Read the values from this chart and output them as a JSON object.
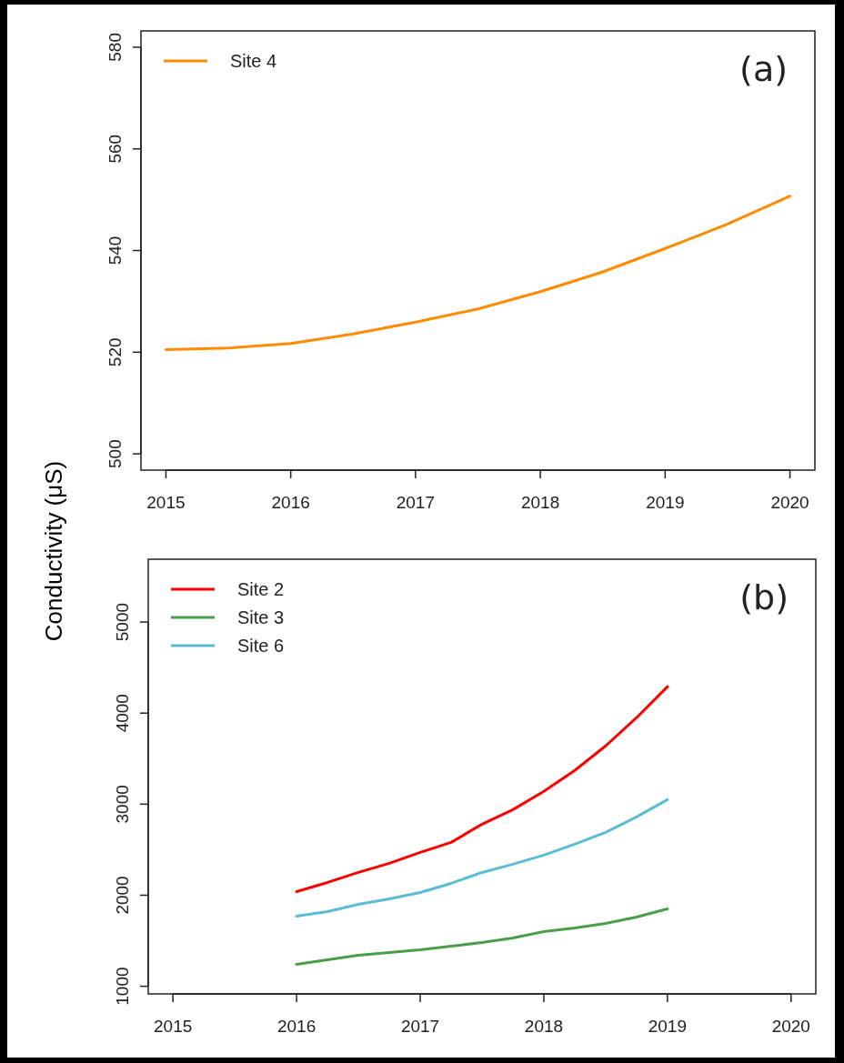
{
  "chart_data": [
    {
      "type": "line",
      "ylabel": "Conductivity (μS)",
      "annotations": [
        "(a)"
      ],
      "x": [
        2015,
        2015.5,
        2016,
        2016.5,
        2017,
        2017.5,
        2018,
        2018.5,
        2019,
        2019.5,
        2020
      ],
      "series": [
        {
          "name": "Site 4",
          "color": "#ff8c00",
          "values": [
            520.5,
            520.8,
            521.7,
            523.6,
            525.9,
            528.5,
            531.9,
            535.8,
            540.4,
            545.2,
            550.7
          ]
        }
      ],
      "xlim": [
        2014.8,
        2020.2
      ],
      "xticks": [
        2015,
        2016,
        2017,
        2018,
        2019,
        2020
      ],
      "ylim": [
        496.8,
        583.2
      ],
      "yticks": [
        500,
        520,
        540,
        560,
        580
      ],
      "grid": false,
      "legend": "top left"
    },
    {
      "type": "line",
      "annotations": [
        "(b)"
      ],
      "x": [
        2016,
        2016.25,
        2016.5,
        2016.75,
        2017,
        2017.25,
        2017.5,
        2017.75,
        2018,
        2018.25,
        2018.5,
        2018.75,
        2019
      ],
      "series": [
        {
          "name": "Site 2",
          "color": "#ff0000",
          "values": [
            2040,
            2140,
            2250,
            2350,
            2470,
            2580,
            2780,
            2940,
            3140,
            3370,
            3640,
            3950,
            4290
          ]
        },
        {
          "name": "Site 3",
          "color": "#4a9e4a",
          "values": [
            1240,
            1290,
            1340,
            1370,
            1400,
            1440,
            1480,
            1530,
            1600,
            1640,
            1690,
            1760,
            1850
          ]
        },
        {
          "name": "Site 6",
          "color": "#5bbcd6",
          "values": [
            1770,
            1820,
            1900,
            1960,
            2030,
            2130,
            2250,
            2340,
            2440,
            2560,
            2690,
            2860,
            3050
          ]
        }
      ],
      "xlim": [
        2014.8,
        2020.2
      ],
      "xticks": [
        2015,
        2016,
        2017,
        2018,
        2019,
        2020
      ],
      "ylim": [
        916,
        5690
      ],
      "yticks": [
        1000,
        2000,
        3000,
        4000,
        5000
      ],
      "grid": false,
      "legend": "top left"
    }
  ]
}
